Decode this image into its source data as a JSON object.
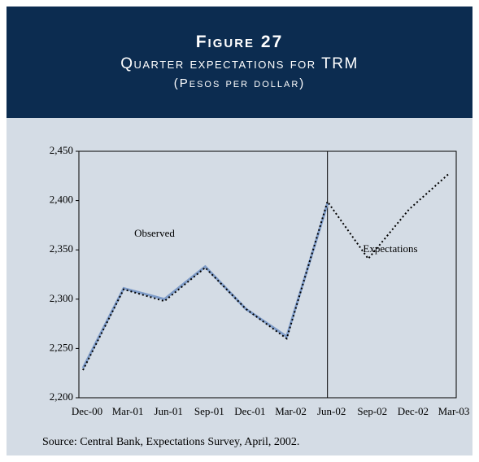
{
  "chart_data": {
    "type": "line",
    "title": "Figure 27",
    "subtitle": "Quarter expectations for TRM",
    "unit_label": "(Pesos per dollar)",
    "source": "Source: Central Bank, Expectations Survey, April, 2002.",
    "categories": [
      "Dec-00",
      "Mar-01",
      "Jun-01",
      "Sep-01",
      "Dec-01",
      "Mar-02",
      "Jun-02",
      "Sep-02",
      "Dec-02",
      "Mar-03"
    ],
    "series": [
      {
        "name": "Observed",
        "color": "#7f9cc8",
        "values": [
          2230,
          2311,
          2300,
          2333,
          2290,
          2262,
          2397,
          null,
          null,
          null
        ]
      },
      {
        "name": "Expectations",
        "color": "#000000",
        "values": [
          2228,
          2310,
          2298,
          2332,
          2290,
          2260,
          2399,
          2341,
          2391,
          2428
        ]
      }
    ],
    "ylim": [
      2200,
      2450
    ],
    "yticks": [
      {
        "value": 2200,
        "label": "2,200"
      },
      {
        "value": 2250,
        "label": "2,250"
      },
      {
        "value": 2300,
        "label": "2,300"
      },
      {
        "value": 2350,
        "label": "2,350"
      },
      {
        "value": 2400,
        "label": "2,400"
      },
      {
        "value": 2450,
        "label": "2,450"
      }
    ]
  }
}
